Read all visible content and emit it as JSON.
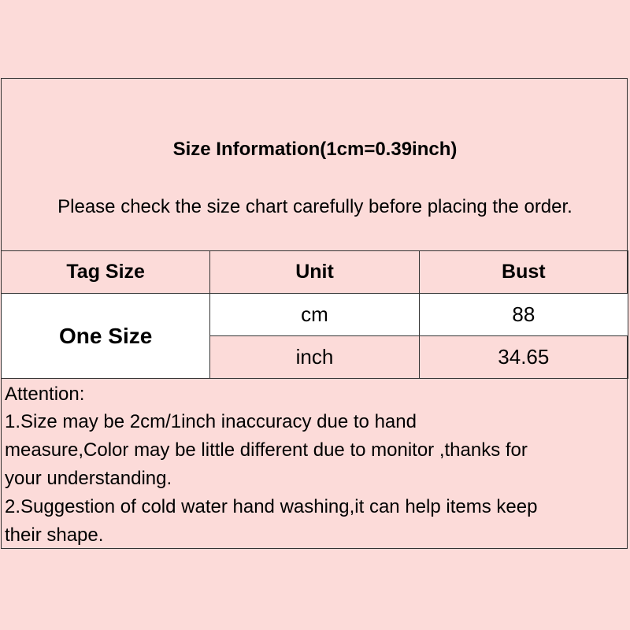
{
  "title": "Size Information(1cm=0.39inch)",
  "subtitle": "Please check the size chart carefully before placing the order.",
  "table": {
    "headers": [
      "Tag Size",
      "Unit",
      "Bust"
    ],
    "tag_size": "One Size",
    "rows": [
      {
        "unit": "cm",
        "bust": "88"
      },
      {
        "unit": "inch",
        "bust": "34.65"
      }
    ]
  },
  "attention": {
    "heading": "Attention:",
    "lines": [
      "1.Size may be 2cm/1inch inaccuracy due to hand",
      "measure,Color may be little different due to monitor ,thanks for",
      "your understanding.",
      "2.Suggestion of cold water hand washing,it can help items keep",
      "their shape."
    ]
  },
  "colors": {
    "background": "#fcdbd9",
    "white_cell": "#ffffff",
    "border": "#333333"
  }
}
